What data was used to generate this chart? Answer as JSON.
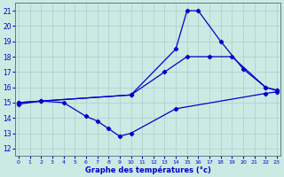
{
  "xlabel": "Graphe des températures (°c)",
  "bg_color": "#cceae4",
  "line_color": "#0000cc",
  "grid_color": "#aacccc",
  "yticks": [
    12,
    13,
    14,
    15,
    16,
    17,
    18,
    19,
    20,
    21
  ],
  "xticks": [
    0,
    1,
    2,
    3,
    4,
    5,
    6,
    7,
    8,
    9,
    10,
    11,
    12,
    13,
    14,
    15,
    16,
    17,
    18,
    19,
    20,
    21,
    22,
    23
  ],
  "line1_x": [
    0,
    2,
    10,
    14,
    15,
    16,
    18,
    20,
    22,
    23
  ],
  "line1_y": [
    15.0,
    15.1,
    15.5,
    18.5,
    21.0,
    21.0,
    19.0,
    17.2,
    16.0,
    15.8
  ],
  "line2_x": [
    0,
    2,
    10,
    13,
    15,
    17,
    19,
    22,
    23
  ],
  "line2_y": [
    15.0,
    15.1,
    15.5,
    17.0,
    18.0,
    18.0,
    18.0,
    16.0,
    15.8
  ],
  "line3_x": [
    0,
    2,
    4,
    6,
    7,
    8,
    9,
    10,
    14,
    22,
    23
  ],
  "line3_y": [
    14.9,
    15.1,
    15.0,
    14.1,
    13.8,
    13.3,
    12.8,
    13.0,
    14.6,
    15.6,
    15.7
  ]
}
